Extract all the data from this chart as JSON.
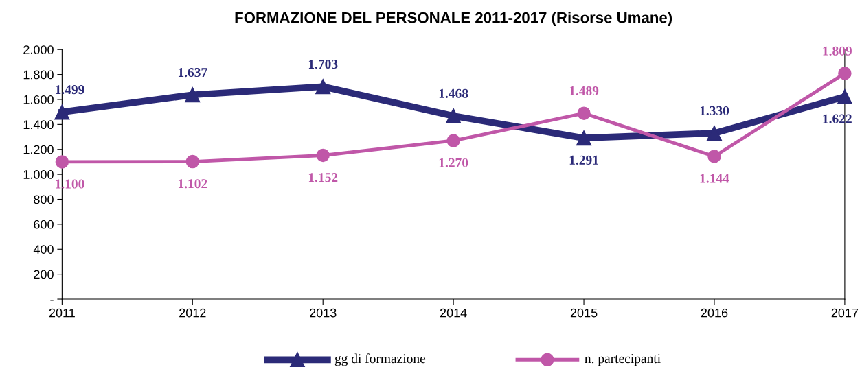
{
  "chart_data": {
    "type": "line",
    "title": "FORMAZIONE DEL PERSONALE 2011-2017 (Risorse Umane)",
    "categories": [
      "2011",
      "2012",
      "2013",
      "2014",
      "2015",
      "2016",
      "2017"
    ],
    "series": [
      {
        "name": "gg di formazione",
        "color": "#2b2a78",
        "marker": "triangle",
        "values": [
          1499,
          1637,
          1703,
          1468,
          1291,
          1330,
          1622
        ],
        "value_labels": [
          "1.499",
          "1.637",
          "1.703",
          "1.468",
          "1.291",
          "1.330",
          "1.622"
        ]
      },
      {
        "name": "n. partecipanti",
        "color": "#c057a8",
        "marker": "circle",
        "values": [
          1100,
          1102,
          1152,
          1270,
          1489,
          1144,
          1809
        ],
        "value_labels": [
          "1.100",
          "1.102",
          "1.152",
          "1.270",
          "1.489",
          "1.144",
          "1.809"
        ]
      }
    ],
    "ylim": [
      0,
      2000
    ],
    "yticks": [
      {
        "value": 0,
        "label": "-"
      },
      200,
      400,
      600,
      800,
      {
        "value": 1000,
        "label": "1.000"
      },
      {
        "value": 1200,
        "label": "1.200"
      },
      {
        "value": 1400,
        "label": "1.400"
      },
      {
        "value": 1600,
        "label": "1.600"
      },
      {
        "value": 1800,
        "label": "1.800"
      },
      {
        "value": 2000,
        "label": "2.000"
      }
    ],
    "legend": "bottom",
    "grid": false
  }
}
